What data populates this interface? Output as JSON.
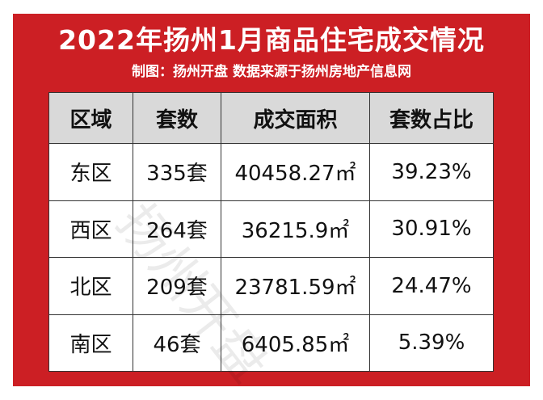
{
  "title": "2022年扬州1月商品住宅成交情况",
  "subtitle": "制图：扬州开盘 数据来源于扬州房地产信息网",
  "watermark": "扬州开盘",
  "colors": {
    "frame": "#cc1f24",
    "header_bg": "#d9d9d9"
  },
  "table": {
    "headers": [
      "区域",
      "套数",
      "成交面积",
      "套数占比"
    ],
    "rows": [
      [
        "东区",
        "335套",
        "40458.27㎡",
        "39.23%"
      ],
      [
        "西区",
        "264套",
        "36215.9㎡",
        "30.91%"
      ],
      [
        "北区",
        "209套",
        "23781.59㎡",
        "24.47%"
      ],
      [
        "南区",
        "46套",
        "6405.85㎡",
        "5.39%"
      ]
    ]
  }
}
